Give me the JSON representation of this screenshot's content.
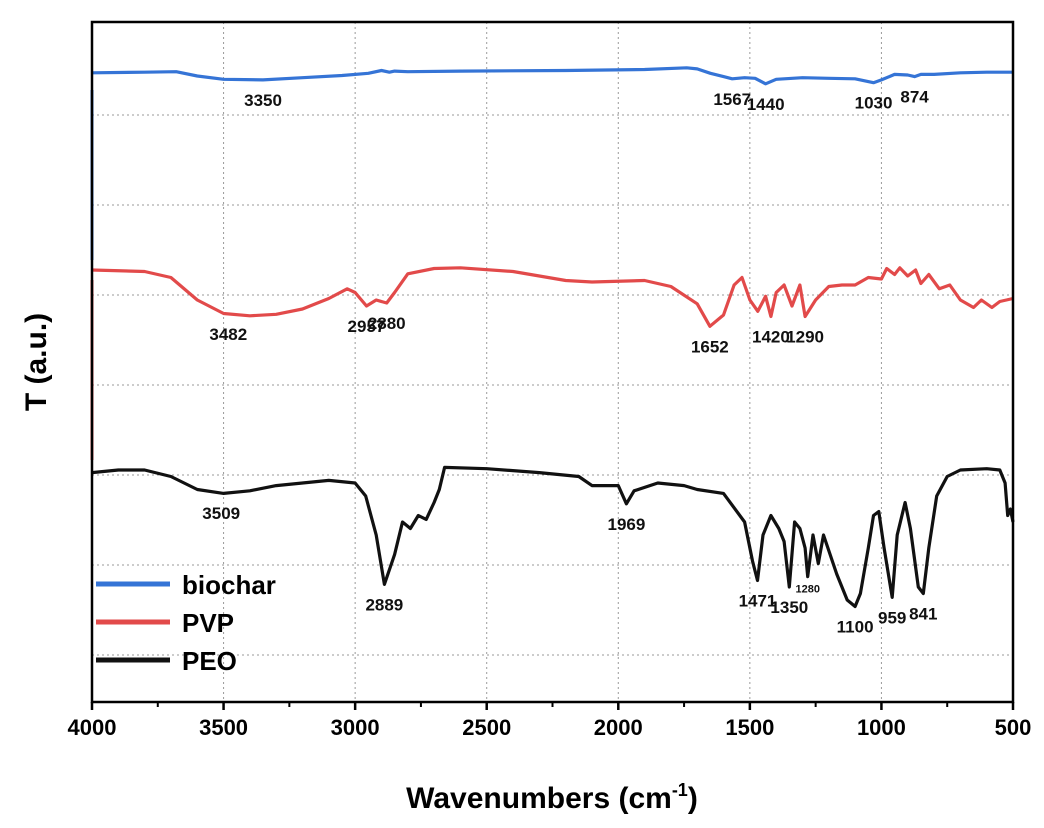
{
  "chart_data": {
    "type": "line",
    "title": "",
    "xlabel": "Wavenumbers (cm",
    "xlabel_sup": "-1",
    "xlabel_close": ")",
    "ylabel": "T (a.u.)",
    "xlim": [
      4000,
      500
    ],
    "x_reversed": true,
    "grid": true,
    "legend_position": "bottom-left",
    "x_ticks": [
      "4000",
      "3500",
      "3000",
      "2500",
      "2000",
      "1500",
      "1000",
      "500"
    ],
    "series": [
      {
        "name": "biochar",
        "color": "#3574d6",
        "points": [
          [
            4000,
            0.05
          ],
          [
            3800,
            0.04
          ],
          [
            3680,
            0.03
          ],
          [
            3600,
            0.11
          ],
          [
            3500,
            0.17
          ],
          [
            3350,
            0.18
          ],
          [
            3200,
            0.14
          ],
          [
            3050,
            0.1
          ],
          [
            2950,
            0.06
          ],
          [
            2900,
            0.01
          ],
          [
            2870,
            0.04
          ],
          [
            2850,
            0.02
          ],
          [
            2800,
            0.03
          ],
          [
            2600,
            0.02
          ],
          [
            2200,
            0.01
          ],
          [
            1900,
            -0.01
          ],
          [
            1740,
            -0.04
          ],
          [
            1700,
            -0.02
          ],
          [
            1650,
            0.06
          ],
          [
            1600,
            0.12
          ],
          [
            1567,
            0.16
          ],
          [
            1520,
            0.14
          ],
          [
            1480,
            0.15
          ],
          [
            1440,
            0.25
          ],
          [
            1400,
            0.17
          ],
          [
            1300,
            0.14
          ],
          [
            1200,
            0.15
          ],
          [
            1100,
            0.16
          ],
          [
            1030,
            0.23
          ],
          [
            1000,
            0.18
          ],
          [
            950,
            0.08
          ],
          [
            900,
            0.09
          ],
          [
            874,
            0.12
          ],
          [
            850,
            0.08
          ],
          [
            800,
            0.08
          ],
          [
            700,
            0.05
          ],
          [
            600,
            0.04
          ],
          [
            500,
            0.04
          ]
        ],
        "peaks": [
          {
            "label": "3350",
            "x": 3350,
            "small": false
          },
          {
            "label": "1567",
            "x": 1567,
            "small": false
          },
          {
            "label": "1440",
            "x": 1440,
            "small": false
          },
          {
            "label": "1030",
            "x": 1030,
            "small": false
          },
          {
            "label": "874",
            "x": 874,
            "small": false
          }
        ]
      },
      {
        "name": "PVP",
        "color": "#e24a4a",
        "points": [
          [
            4000,
            0.0
          ],
          [
            3800,
            0.02
          ],
          [
            3700,
            0.1
          ],
          [
            3600,
            0.4
          ],
          [
            3500,
            0.58
          ],
          [
            3400,
            0.61
          ],
          [
            3300,
            0.59
          ],
          [
            3200,
            0.52
          ],
          [
            3100,
            0.38
          ],
          [
            3030,
            0.25
          ],
          [
            3000,
            0.3
          ],
          [
            2957,
            0.48
          ],
          [
            2920,
            0.4
          ],
          [
            2880,
            0.44
          ],
          [
            2850,
            0.3
          ],
          [
            2800,
            0.05
          ],
          [
            2700,
            -0.02
          ],
          [
            2600,
            -0.03
          ],
          [
            2400,
            0.02
          ],
          [
            2200,
            0.14
          ],
          [
            2100,
            0.16
          ],
          [
            1900,
            0.14
          ],
          [
            1800,
            0.22
          ],
          [
            1700,
            0.45
          ],
          [
            1652,
            0.75
          ],
          [
            1600,
            0.6
          ],
          [
            1560,
            0.2
          ],
          [
            1530,
            0.1
          ],
          [
            1500,
            0.4
          ],
          [
            1470,
            0.55
          ],
          [
            1440,
            0.35
          ],
          [
            1420,
            0.62
          ],
          [
            1400,
            0.3
          ],
          [
            1370,
            0.2
          ],
          [
            1340,
            0.48
          ],
          [
            1310,
            0.2
          ],
          [
            1290,
            0.62
          ],
          [
            1250,
            0.4
          ],
          [
            1200,
            0.22
          ],
          [
            1150,
            0.2
          ],
          [
            1100,
            0.2
          ],
          [
            1050,
            0.1
          ],
          [
            1000,
            0.12
          ],
          [
            980,
            -0.02
          ],
          [
            950,
            0.06
          ],
          [
            930,
            -0.03
          ],
          [
            900,
            0.08
          ],
          [
            870,
            0.0
          ],
          [
            850,
            0.18
          ],
          [
            820,
            0.06
          ],
          [
            780,
            0.25
          ],
          [
            740,
            0.2
          ],
          [
            700,
            0.4
          ],
          [
            650,
            0.5
          ],
          [
            620,
            0.4
          ],
          [
            580,
            0.5
          ],
          [
            550,
            0.42
          ],
          [
            500,
            0.38
          ]
        ],
        "peaks": [
          {
            "label": "3482",
            "x": 3482,
            "small": false
          },
          {
            "label": "2957",
            "x": 2957,
            "small": false
          },
          {
            "label": "2880",
            "x": 2880,
            "small": false
          },
          {
            "label": "1652",
            "x": 1652,
            "small": false
          },
          {
            "label": "1420",
            "x": 1420,
            "small": false
          },
          {
            "label": "1290",
            "x": 1290,
            "small": false
          }
        ]
      },
      {
        "name": "PEO",
        "color": "#111111",
        "points": [
          [
            4000,
            0.02
          ],
          [
            3900,
            0.0
          ],
          [
            3800,
            0.0
          ],
          [
            3700,
            0.05
          ],
          [
            3600,
            0.15
          ],
          [
            3500,
            0.18
          ],
          [
            3400,
            0.16
          ],
          [
            3300,
            0.12
          ],
          [
            3100,
            0.08
          ],
          [
            3000,
            0.1
          ],
          [
            2960,
            0.2
          ],
          [
            2920,
            0.5
          ],
          [
            2889,
            0.88
          ],
          [
            2850,
            0.65
          ],
          [
            2820,
            0.4
          ],
          [
            2790,
            0.45
          ],
          [
            2760,
            0.35
          ],
          [
            2730,
            0.38
          ],
          [
            2700,
            0.25
          ],
          [
            2680,
            0.15
          ],
          [
            2660,
            -0.02
          ],
          [
            2500,
            -0.01
          ],
          [
            2300,
            0.02
          ],
          [
            2150,
            0.05
          ],
          [
            2100,
            0.12
          ],
          [
            2000,
            0.12
          ],
          [
            1969,
            0.26
          ],
          [
            1940,
            0.16
          ],
          [
            1850,
            0.1
          ],
          [
            1750,
            0.12
          ],
          [
            1700,
            0.15
          ],
          [
            1600,
            0.18
          ],
          [
            1520,
            0.4
          ],
          [
            1490,
            0.7
          ],
          [
            1471,
            0.85
          ],
          [
            1450,
            0.5
          ],
          [
            1420,
            0.35
          ],
          [
            1390,
            0.45
          ],
          [
            1370,
            0.55
          ],
          [
            1350,
            0.9
          ],
          [
            1330,
            0.4
          ],
          [
            1310,
            0.45
          ],
          [
            1290,
            0.6
          ],
          [
            1280,
            0.82
          ],
          [
            1260,
            0.5
          ],
          [
            1240,
            0.72
          ],
          [
            1220,
            0.5
          ],
          [
            1200,
            0.62
          ],
          [
            1170,
            0.8
          ],
          [
            1130,
            1.0
          ],
          [
            1100,
            1.05
          ],
          [
            1080,
            0.95
          ],
          [
            1050,
            0.6
          ],
          [
            1030,
            0.35
          ],
          [
            1010,
            0.32
          ],
          [
            990,
            0.6
          ],
          [
            959,
            0.98
          ],
          [
            940,
            0.5
          ],
          [
            910,
            0.25
          ],
          [
            890,
            0.45
          ],
          [
            860,
            0.9
          ],
          [
            841,
            0.95
          ],
          [
            820,
            0.6
          ],
          [
            790,
            0.2
          ],
          [
            750,
            0.05
          ],
          [
            700,
            0.0
          ],
          [
            600,
            -0.01
          ],
          [
            550,
            0.0
          ],
          [
            530,
            0.1
          ],
          [
            520,
            0.35
          ],
          [
            510,
            0.3
          ],
          [
            500,
            0.4
          ]
        ],
        "peaks": [
          {
            "label": "3509",
            "x": 3509,
            "small": false
          },
          {
            "label": "2889",
            "x": 2889,
            "small": false
          },
          {
            "label": "1969",
            "x": 1969,
            "small": false
          },
          {
            "label": "1471",
            "x": 1471,
            "small": false
          },
          {
            "label": "1350",
            "x": 1350,
            "small": false
          },
          {
            "label": "1280",
            "x": 1280,
            "small": true
          },
          {
            "label": "1100",
            "x": 1100,
            "small": false
          },
          {
            "label": "959",
            "x": 959,
            "small": false
          },
          {
            "label": "841",
            "x": 841,
            "small": false
          }
        ]
      }
    ]
  }
}
